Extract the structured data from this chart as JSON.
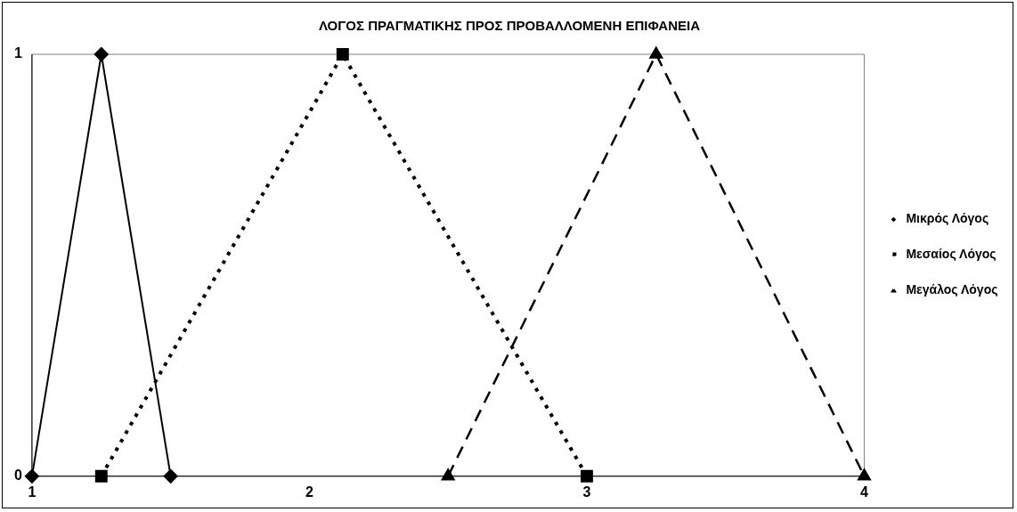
{
  "chart_data": {
    "type": "line",
    "title": "ΛΟΓΟΣ ΠΡΑΓΜΑΤΙΚΗΣ ΠΡΟΣ ΠΡΟΒΑΛΛΟΜΕΝΗ ΕΠΙΦΑΝΕΙΑ",
    "xlim": [
      1,
      4
    ],
    "xticks": [
      1,
      2,
      3,
      4
    ],
    "ylim": [
      0,
      1
    ],
    "yticks": [
      0,
      1
    ],
    "grid": false,
    "legend": "right",
    "series": [
      {
        "name": "Μικρός Λόγος",
        "color": "#000000",
        "marker": "diamond",
        "line_style": "solid",
        "x": [
          1,
          1.25,
          1.5
        ],
        "values": [
          0,
          1,
          0
        ]
      },
      {
        "name": "Μεσαίος Λόγος",
        "color": "#000000",
        "marker": "square",
        "line_style": "dotted",
        "x": [
          1.25,
          2.12,
          3
        ],
        "values": [
          0,
          1,
          0
        ]
      },
      {
        "name": "Μεγάλος Λόγος",
        "color": "#000000",
        "marker": "triangle",
        "line_style": "dashed",
        "x": [
          2.5,
          3.25,
          4
        ],
        "values": [
          0,
          1,
          0
        ]
      }
    ]
  }
}
